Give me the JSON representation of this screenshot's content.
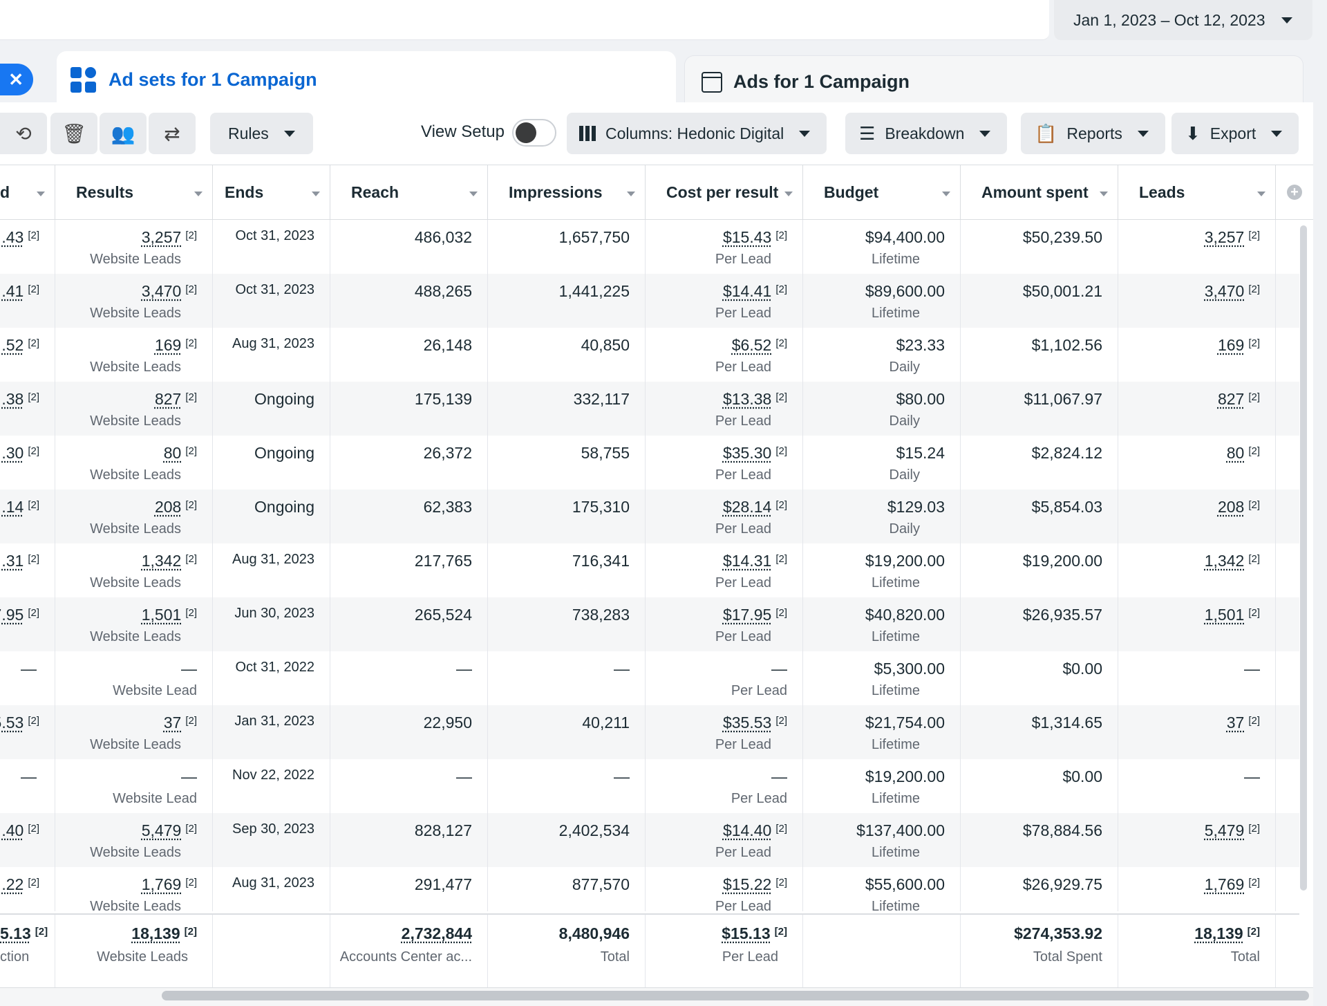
{
  "date_range": "Jan 1, 2023 – Oct 12, 2023",
  "tabs": {
    "close_glyph": "✕",
    "active": "Ad sets for 1 Campaign",
    "inactive": "Ads for 1 Campaign"
  },
  "toolbar": {
    "rules": "Rules",
    "view_setup": "View Setup",
    "columns": "Columns: Hedonic Digital",
    "breakdown": "Breakdown",
    "reports": "Reports",
    "export": "Export"
  },
  "headers": [
    "d",
    "Results",
    "Ends",
    "Reach",
    "Impressions",
    "Cost per result",
    "Budget",
    "Amount spent",
    "Leads"
  ],
  "rows": [
    {
      "cut": ".43",
      "results": "3,257",
      "results_sub": "Website Leads",
      "ends": "Oct 31, 2023",
      "reach": "486,032",
      "impressions": "1,657,750",
      "cpr": "$15.43",
      "cpr_sub": "Per Lead",
      "budget": "$94,400.00",
      "budget_sub": "Lifetime",
      "spent": "$50,239.50",
      "leads": "3,257"
    },
    {
      "cut": ".41",
      "results": "3,470",
      "results_sub": "Website Leads",
      "ends": "Oct 31, 2023",
      "reach": "488,265",
      "impressions": "1,441,225",
      "cpr": "$14.41",
      "cpr_sub": "Per Lead",
      "budget": "$89,600.00",
      "budget_sub": "Lifetime",
      "spent": "$50,001.21",
      "leads": "3,470"
    },
    {
      "cut": ".52",
      "results": "169",
      "results_sub": "Website Leads",
      "ends": "Aug 31, 2023",
      "reach": "26,148",
      "impressions": "40,850",
      "cpr": "$6.52",
      "cpr_sub": "Per Lead",
      "budget": "$23.33",
      "budget_sub": "Daily",
      "spent": "$1,102.56",
      "leads": "169"
    },
    {
      "cut": ".38",
      "results": "827",
      "results_sub": "Website Leads",
      "ends": "Ongoing",
      "reach": "175,139",
      "impressions": "332,117",
      "cpr": "$13.38",
      "cpr_sub": "Per Lead",
      "budget": "$80.00",
      "budget_sub": "Daily",
      "spent": "$11,067.97",
      "leads": "827"
    },
    {
      "cut": ".30",
      "results": "80",
      "results_sub": "Website Leads",
      "ends": "Ongoing",
      "reach": "26,372",
      "impressions": "58,755",
      "cpr": "$35.30",
      "cpr_sub": "Per Lead",
      "budget": "$15.24",
      "budget_sub": "Daily",
      "spent": "$2,824.12",
      "leads": "80"
    },
    {
      "cut": ".14",
      "results": "208",
      "results_sub": "Website Leads",
      "ends": "Ongoing",
      "reach": "62,383",
      "impressions": "175,310",
      "cpr": "$28.14",
      "cpr_sub": "Per Lead",
      "budget": "$129.03",
      "budget_sub": "Daily",
      "spent": "$5,854.03",
      "leads": "208"
    },
    {
      "cut": ".31",
      "results": "1,342",
      "results_sub": "Website Leads",
      "ends": "Aug 31, 2023",
      "reach": "217,765",
      "impressions": "716,341",
      "cpr": "$14.31",
      "cpr_sub": "Per Lead",
      "budget": "$19,200.00",
      "budget_sub": "Lifetime",
      "spent": "$19,200.00",
      "leads": "1,342"
    },
    {
      "cut": "7.95",
      "results": "1,501",
      "results_sub": "Website Leads",
      "ends": "Jun 30, 2023",
      "reach": "265,524",
      "impressions": "738,283",
      "cpr": "$17.95",
      "cpr_sub": "Per Lead",
      "budget": "$40,820.00",
      "budget_sub": "Lifetime",
      "spent": "$26,935.57",
      "leads": "1,501"
    },
    {
      "cut": "—",
      "results": "—",
      "results_sub": "Website Lead",
      "ends": "Oct 31, 2022",
      "reach": "—",
      "impressions": "—",
      "cpr": "—",
      "cpr_sub": "Per Lead",
      "budget": "$5,300.00",
      "budget_sub": "Lifetime",
      "spent": "$0.00",
      "leads": "—"
    },
    {
      "cut": "5.53",
      "results": "37",
      "results_sub": "Website Leads",
      "ends": "Jan 31, 2023",
      "reach": "22,950",
      "impressions": "40,211",
      "cpr": "$35.53",
      "cpr_sub": "Per Lead",
      "budget": "$21,754.00",
      "budget_sub": "Lifetime",
      "spent": "$1,314.65",
      "leads": "37"
    },
    {
      "cut": "—",
      "results": "—",
      "results_sub": "Website Lead",
      "ends": "Nov 22, 2022",
      "reach": "—",
      "impressions": "—",
      "cpr": "—",
      "cpr_sub": "Per Lead",
      "budget": "$19,200.00",
      "budget_sub": "Lifetime",
      "spent": "$0.00",
      "leads": "—"
    },
    {
      "cut": ".40",
      "results": "5,479",
      "results_sub": "Website Leads",
      "ends": "Sep 30, 2023",
      "reach": "828,127",
      "impressions": "2,402,534",
      "cpr": "$14.40",
      "cpr_sub": "Per Lead",
      "budget": "$137,400.00",
      "budget_sub": "Lifetime",
      "spent": "$78,884.56",
      "leads": "5,479"
    },
    {
      "cut": ".22",
      "results": "1,769",
      "results_sub": "Website Leads",
      "ends": "Aug 31, 2023",
      "reach": "291,477",
      "impressions": "877,570",
      "cpr": "$15.22",
      "cpr_sub": "Per Lead",
      "budget": "$55,600.00",
      "budget_sub": "Lifetime",
      "spent": "$26,929.75",
      "leads": "1,769"
    }
  ],
  "footnote": "[2]",
  "totals": {
    "cut": "5.13",
    "cut_sub": "ction",
    "results": "18,139",
    "results_sub": "Website Leads",
    "reach": "2,732,844",
    "reach_sub": "Accounts Center ac...",
    "impressions": "8,480,946",
    "impressions_sub": "Total",
    "cpr": "$15.13",
    "cpr_sub": "Per Lead",
    "spent": "$274,353.92",
    "spent_sub": "Total Spent",
    "leads": "18,139",
    "leads_sub": "Total"
  }
}
